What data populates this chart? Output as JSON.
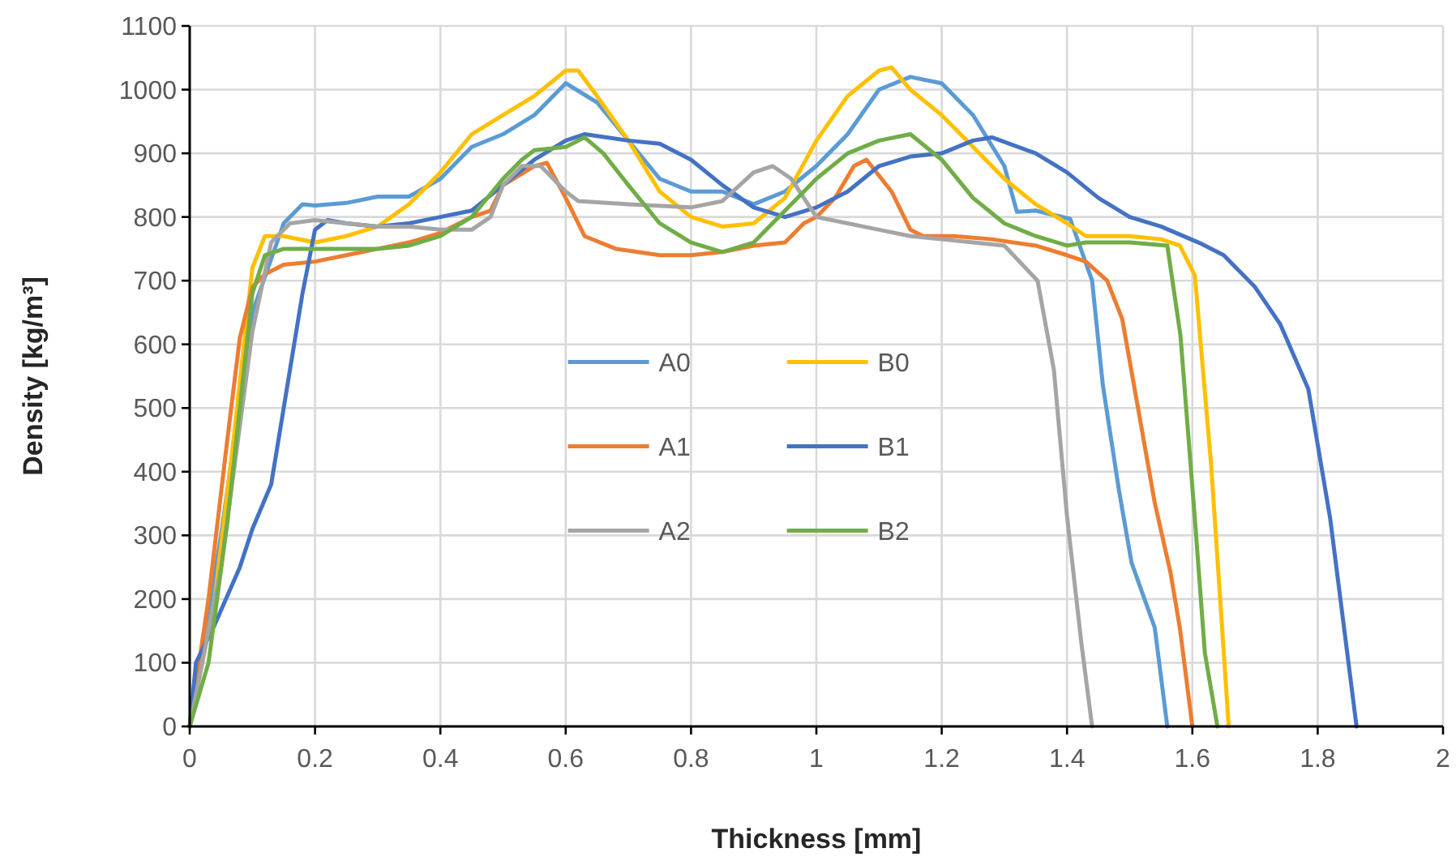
{
  "chart_data": {
    "type": "line",
    "xlabel": "Thickness [mm]",
    "ylabel": "Density [kg/m³]",
    "xlim": [
      0,
      2
    ],
    "ylim": [
      0,
      1100
    ],
    "xticks": [
      0,
      0.2,
      0.4,
      0.6,
      0.8,
      1,
      1.2,
      1.4,
      1.6,
      1.8,
      2
    ],
    "yticks": [
      0,
      100,
      200,
      300,
      400,
      500,
      600,
      700,
      800,
      900,
      1000,
      1100
    ],
    "grid": true,
    "legend": "center",
    "line_style": "solid",
    "marker": "none",
    "series": [
      {
        "name": "A0",
        "color": "#5b9bd5",
        "x": [
          0,
          0.05,
          0.1,
          0.15,
          0.18,
          0.2,
          0.25,
          0.3,
          0.35,
          0.4,
          0.45,
          0.5,
          0.55,
          0.6,
          0.65,
          0.7,
          0.75,
          0.8,
          0.85,
          0.9,
          0.95,
          1.0,
          1.05,
          1.1,
          1.15,
          1.2,
          1.25,
          1.3,
          1.32,
          1.35,
          1.405,
          1.44,
          1.457,
          1.483,
          1.503,
          1.54,
          1.56
        ],
        "values": [
          0,
          300,
          650,
          790,
          820,
          818,
          822,
          832,
          832,
          860,
          910,
          930,
          960,
          1010,
          980,
          920,
          860,
          840,
          840,
          820,
          840,
          880,
          930,
          1000,
          1020,
          1010,
          960,
          880,
          808,
          810,
          797,
          700,
          537,
          370,
          257,
          155,
          0
        ]
      },
      {
        "name": "B0",
        "color": "#ffc000",
        "x": [
          0,
          0.04,
          0.07,
          0.1,
          0.12,
          0.15,
          0.2,
          0.25,
          0.3,
          0.35,
          0.4,
          0.45,
          0.5,
          0.55,
          0.6,
          0.62,
          0.65,
          0.7,
          0.75,
          0.8,
          0.85,
          0.9,
          0.95,
          1.0,
          1.05,
          1.1,
          1.12,
          1.15,
          1.2,
          1.25,
          1.3,
          1.35,
          1.4,
          1.43,
          1.5,
          1.55,
          1.58,
          1.604,
          1.63,
          1.658
        ],
        "values": [
          0,
          200,
          450,
          720,
          770,
          770,
          760,
          770,
          785,
          820,
          870,
          930,
          960,
          990,
          1030,
          1030,
          990,
          920,
          840,
          800,
          785,
          790,
          830,
          920,
          990,
          1030,
          1035,
          1000,
          960,
          910,
          860,
          820,
          790,
          770,
          770,
          765,
          755,
          708,
          410,
          0
        ]
      },
      {
        "name": "A1",
        "color": "#ed7d31",
        "x": [
          0,
          0.03,
          0.06,
          0.08,
          0.1,
          0.12,
          0.15,
          0.2,
          0.25,
          0.3,
          0.35,
          0.4,
          0.45,
          0.48,
          0.5,
          0.55,
          0.57,
          0.6,
          0.63,
          0.68,
          0.75,
          0.8,
          0.85,
          0.9,
          0.95,
          0.98,
          1.0,
          1.03,
          1.06,
          1.08,
          1.12,
          1.15,
          1.17,
          1.22,
          1.28,
          1.35,
          1.4,
          1.43,
          1.464,
          1.488,
          1.514,
          1.54,
          1.565,
          1.58,
          1.6
        ],
        "values": [
          0,
          200,
          450,
          610,
          690,
          710,
          725,
          730,
          740,
          750,
          760,
          775,
          800,
          810,
          850,
          880,
          885,
          830,
          770,
          750,
          740,
          740,
          745,
          755,
          760,
          790,
          800,
          830,
          880,
          890,
          840,
          780,
          770,
          770,
          765,
          755,
          740,
          730,
          700,
          640,
          496,
          351,
          242,
          155,
          0
        ]
      },
      {
        "name": "B1",
        "color": "#4472c4",
        "x": [
          0,
          0.01,
          0.04,
          0.08,
          0.1,
          0.13,
          0.15,
          0.18,
          0.2,
          0.22,
          0.25,
          0.3,
          0.35,
          0.4,
          0.45,
          0.5,
          0.55,
          0.6,
          0.63,
          0.7,
          0.75,
          0.8,
          0.85,
          0.9,
          0.95,
          1.0,
          1.05,
          1.1,
          1.15,
          1.2,
          1.25,
          1.28,
          1.35,
          1.4,
          1.45,
          1.5,
          1.55,
          1.612,
          1.65,
          1.7,
          1.74,
          1.785,
          1.82,
          1.862
        ],
        "values": [
          0,
          100,
          160,
          250,
          310,
          380,
          500,
          680,
          780,
          795,
          790,
          785,
          790,
          800,
          810,
          850,
          890,
          920,
          930,
          920,
          915,
          890,
          850,
          815,
          800,
          815,
          840,
          880,
          895,
          900,
          920,
          925,
          900,
          870,
          830,
          800,
          785,
          759,
          740,
          690,
          632,
          530,
          326,
          0
        ]
      },
      {
        "name": "A2",
        "color": "#a5a5a5",
        "x": [
          0,
          0.05,
          0.1,
          0.13,
          0.16,
          0.2,
          0.25,
          0.3,
          0.35,
          0.4,
          0.45,
          0.48,
          0.5,
          0.53,
          0.56,
          0.6,
          0.62,
          0.7,
          0.8,
          0.85,
          0.9,
          0.93,
          0.96,
          1.0,
          1.05,
          1.1,
          1.15,
          1.2,
          1.25,
          1.3,
          1.353,
          1.379,
          1.4,
          1.423,
          1.44
        ],
        "values": [
          0,
          250,
          620,
          760,
          790,
          795,
          790,
          785,
          785,
          780,
          780,
          800,
          850,
          880,
          880,
          840,
          825,
          820,
          815,
          825,
          870,
          880,
          860,
          800,
          790,
          780,
          770,
          765,
          760,
          755,
          700,
          560,
          330,
          130,
          0
        ]
      },
      {
        "name": "B2",
        "color": "#70ad47",
        "x": [
          0,
          0.03,
          0.06,
          0.08,
          0.1,
          0.12,
          0.15,
          0.2,
          0.25,
          0.3,
          0.35,
          0.4,
          0.45,
          0.5,
          0.53,
          0.55,
          0.6,
          0.63,
          0.66,
          0.7,
          0.75,
          0.8,
          0.85,
          0.9,
          0.95,
          1.0,
          1.05,
          1.1,
          1.15,
          1.2,
          1.25,
          1.3,
          1.35,
          1.4,
          1.43,
          1.5,
          1.56,
          1.581,
          1.604,
          1.62,
          1.64
        ],
        "values": [
          0,
          100,
          320,
          500,
          680,
          740,
          750,
          750,
          750,
          750,
          755,
          770,
          800,
          860,
          890,
          905,
          910,
          925,
          900,
          850,
          790,
          760,
          745,
          760,
          810,
          860,
          900,
          920,
          930,
          890,
          830,
          790,
          770,
          755,
          760,
          760,
          755,
          614,
          326,
          115,
          0
        ]
      }
    ]
  }
}
